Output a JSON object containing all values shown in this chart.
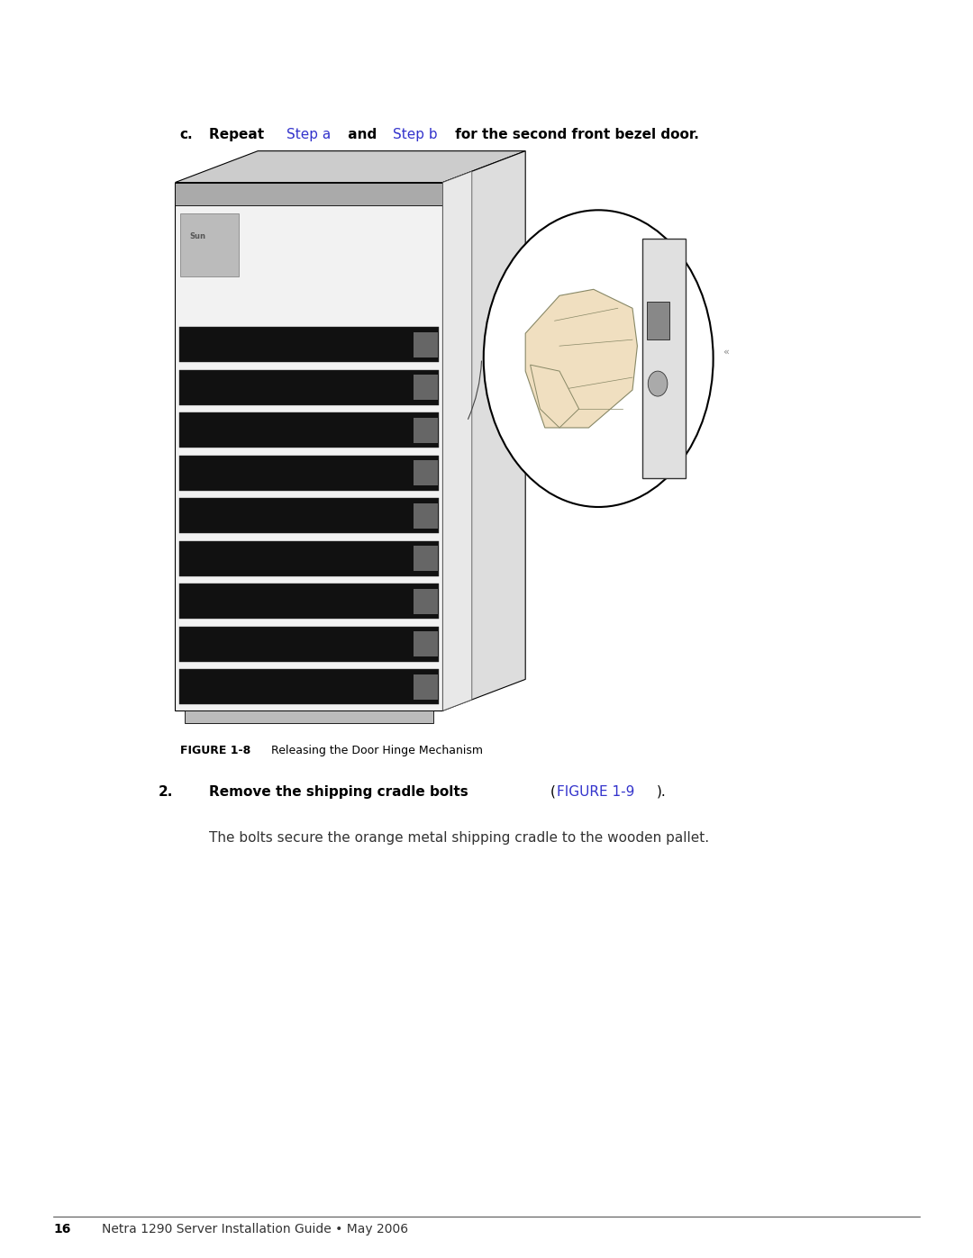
{
  "bg_color": "#ffffff",
  "page_width": 10.8,
  "page_height": 13.97,
  "dpi": 100,
  "step_c_label": "c.",
  "step_c_text_parts": [
    {
      "text": "Repeat ",
      "bold": true,
      "color": "#000000"
    },
    {
      "text": "Step a",
      "bold": false,
      "color": "#3333cc"
    },
    {
      "text": " and ",
      "bold": true,
      "color": "#000000"
    },
    {
      "text": "Step b",
      "bold": false,
      "color": "#3333cc"
    },
    {
      "text": " for the second front bezel door.",
      "bold": true,
      "color": "#000000"
    }
  ],
  "figure_caption_bold": "FIGURE 1-8",
  "figure_caption_text": "   Releasing the Door Hinge Mechanism",
  "step2_number": "2.",
  "step2_text_parts": [
    {
      "text": "Remove the shipping cradle bolts ",
      "bold": true,
      "color": "#000000"
    },
    {
      "text": "(",
      "bold": false,
      "color": "#000000"
    },
    {
      "text": "FIGURE 1-9",
      "bold": false,
      "color": "#3333cc"
    },
    {
      "text": ").",
      "bold": false,
      "color": "#000000"
    }
  ],
  "step2_body": "The bolts secure the orange metal shipping cradle to the wooden pallet.",
  "footer_page": "16",
  "footer_text": "Netra 1290 Server Installation Guide • May 2006"
}
